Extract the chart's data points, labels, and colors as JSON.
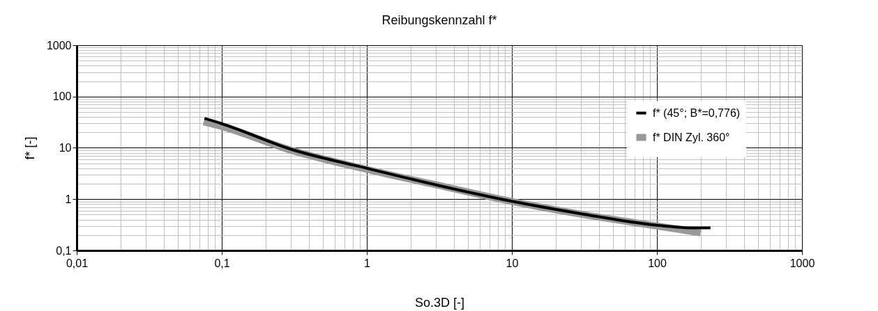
{
  "chart_data": {
    "type": "line",
    "title": "Reibungskennzahl f*",
    "xlabel": "So.3D [-]",
    "ylabel": "f* [-]",
    "log": "xy",
    "grid": true,
    "legend": "top right",
    "line_style": "solid",
    "marker": "none",
    "xlim": [
      0.01,
      1000
    ],
    "ylim": [
      0.1,
      1000
    ],
    "xticks": [
      {
        "value": 0.01,
        "label": "0,01"
      },
      {
        "value": 0.02,
        "label": null
      },
      {
        "value": 0.03,
        "label": null
      },
      {
        "value": 0.04,
        "label": null
      },
      {
        "value": 0.05,
        "label": null
      },
      {
        "value": 0.06,
        "label": null
      },
      {
        "value": 0.07,
        "label": null
      },
      {
        "value": 0.08,
        "label": null
      },
      {
        "value": 0.09,
        "label": null
      },
      {
        "value": 0.1,
        "label": "0,1"
      },
      {
        "value": 0.2,
        "label": null
      },
      {
        "value": 0.3,
        "label": null
      },
      {
        "value": 0.4,
        "label": null
      },
      {
        "value": 0.5,
        "label": null
      },
      {
        "value": 0.6,
        "label": null
      },
      {
        "value": 0.7,
        "label": null
      },
      {
        "value": 0.8,
        "label": null
      },
      {
        "value": 0.9,
        "label": null
      },
      1,
      {
        "value": 2,
        "label": null
      },
      {
        "value": 3,
        "label": null
      },
      {
        "value": 4,
        "label": null
      },
      {
        "value": 5,
        "label": null
      },
      {
        "value": 6,
        "label": null
      },
      {
        "value": 7,
        "label": null
      },
      {
        "value": 8,
        "label": null
      },
      {
        "value": 9,
        "label": null
      },
      10,
      {
        "value": 20,
        "label": null
      },
      {
        "value": 30,
        "label": null
      },
      {
        "value": 40,
        "label": null
      },
      {
        "value": 50,
        "label": null
      },
      {
        "value": 60,
        "label": null
      },
      {
        "value": 70,
        "label": null
      },
      {
        "value": 80,
        "label": null
      },
      {
        "value": 90,
        "label": null
      },
      100,
      {
        "value": 200,
        "label": null
      },
      {
        "value": 300,
        "label": null
      },
      {
        "value": 400,
        "label": null
      },
      {
        "value": 500,
        "label": null
      },
      {
        "value": 600,
        "label": null
      },
      {
        "value": 700,
        "label": null
      },
      {
        "value": 800,
        "label": null
      },
      {
        "value": 900,
        "label": null
      },
      1000
    ],
    "yticks": [
      {
        "value": 0.1,
        "label": "0,1"
      },
      {
        "value": 0.2,
        "label": null
      },
      {
        "value": 0.3,
        "label": null
      },
      {
        "value": 0.4,
        "label": null
      },
      {
        "value": 0.5,
        "label": null
      },
      {
        "value": 0.6,
        "label": null
      },
      {
        "value": 0.7,
        "label": null
      },
      {
        "value": 0.8,
        "label": null
      },
      {
        "value": 0.9,
        "label": null
      },
      1,
      {
        "value": 2,
        "label": null
      },
      {
        "value": 3,
        "label": null
      },
      {
        "value": 4,
        "label": null
      },
      {
        "value": 5,
        "label": null
      },
      {
        "value": 6,
        "label": null
      },
      {
        "value": 7,
        "label": null
      },
      {
        "value": 8,
        "label": null
      },
      {
        "value": 9,
        "label": null
      },
      10,
      {
        "value": 20,
        "label": null
      },
      {
        "value": 30,
        "label": null
      },
      {
        "value": 40,
        "label": null
      },
      {
        "value": 50,
        "label": null
      },
      {
        "value": 60,
        "label": null
      },
      {
        "value": 70,
        "label": null
      },
      {
        "value": 80,
        "label": null
      },
      {
        "value": 90,
        "label": null
      },
      100,
      {
        "value": 200,
        "label": null
      },
      {
        "value": 300,
        "label": null
      },
      {
        "value": 400,
        "label": null
      },
      {
        "value": 500,
        "label": null
      },
      {
        "value": 600,
        "label": null
      },
      {
        "value": 700,
        "label": null
      },
      {
        "value": 800,
        "label": null
      },
      {
        "value": 900,
        "label": null
      },
      1000
    ],
    "series": [
      {
        "name": "f* DIN Zyl. 360°",
        "color": "#999999",
        "x": [
          0.075,
          0.1,
          0.3,
          1,
          3,
          10,
          30,
          100,
          200
        ],
        "values": [
          32,
          26,
          9,
          3.8,
          1.9,
          0.9,
          0.51,
          0.3,
          0.22
        ]
      },
      {
        "name": "f* (45°; B*=0,776)",
        "color": "#000000",
        "x": [
          0.076,
          0.1,
          0.3,
          1,
          3,
          10,
          30,
          100,
          180,
          234
        ],
        "values": [
          37.5,
          29.6,
          9.4,
          4,
          1.9,
          0.91,
          0.52,
          0.31,
          0.275,
          0.275
        ]
      }
    ]
  }
}
